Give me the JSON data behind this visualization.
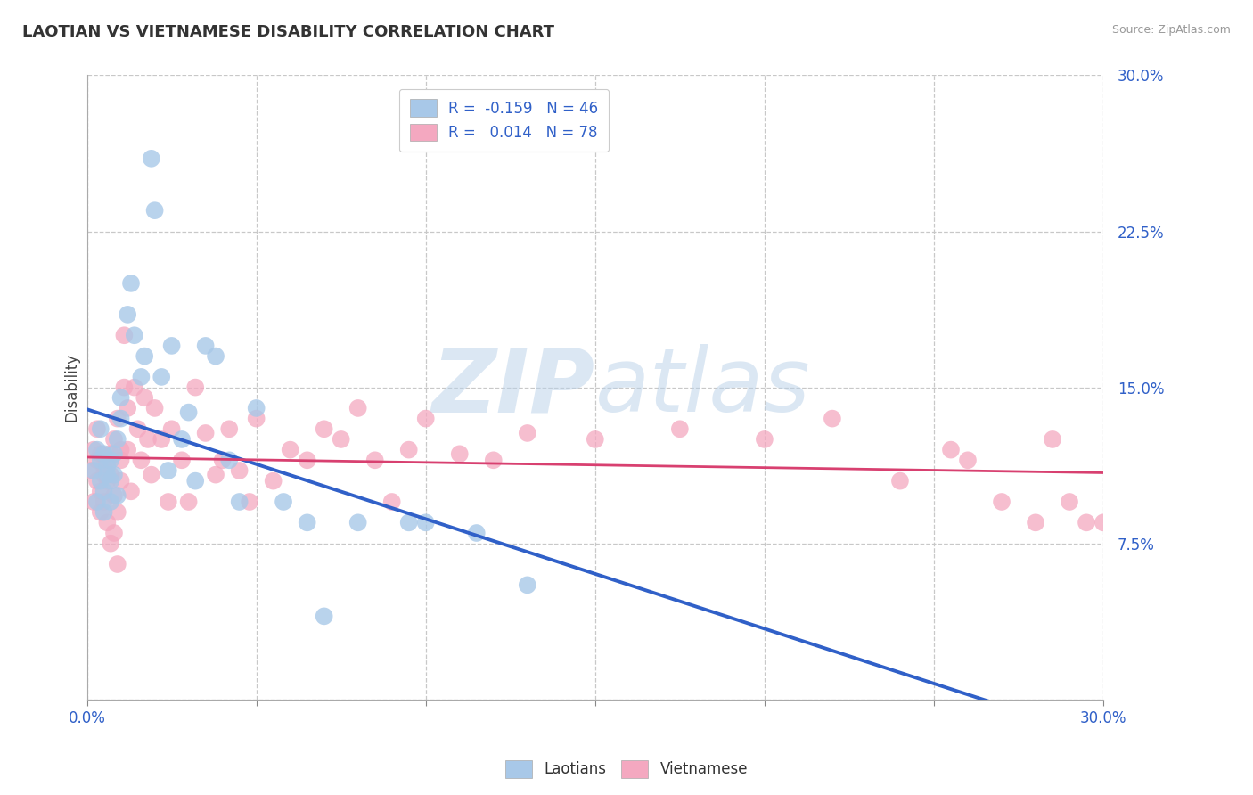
{
  "title": "LAOTIAN VS VIETNAMESE DISABILITY CORRELATION CHART",
  "source": "Source: ZipAtlas.com",
  "ylabel": "Disability",
  "xlim": [
    0.0,
    0.3
  ],
  "ylim": [
    0.0,
    0.3
  ],
  "xticks": [
    0.0,
    0.05,
    0.1,
    0.15,
    0.2,
    0.25,
    0.3
  ],
  "yticks": [
    0.0,
    0.075,
    0.15,
    0.225,
    0.3
  ],
  "laotian_color": "#a8c8e8",
  "vietnamese_color": "#f4a8c0",
  "laotian_R": -0.159,
  "laotian_N": 46,
  "vietnamese_R": 0.014,
  "vietnamese_N": 78,
  "laotian_line_color": "#3060c8",
  "vietnamese_line_color": "#d84070",
  "background_color": "#ffffff",
  "grid_color": "#c8c8c8",
  "watermark_color": "#d0e4f4",
  "laotian_x": [
    0.002,
    0.003,
    0.003,
    0.004,
    0.004,
    0.004,
    0.005,
    0.005,
    0.005,
    0.006,
    0.006,
    0.007,
    0.007,
    0.007,
    0.008,
    0.008,
    0.009,
    0.009,
    0.01,
    0.01,
    0.012,
    0.013,
    0.014,
    0.016,
    0.017,
    0.019,
    0.02,
    0.022,
    0.024,
    0.025,
    0.028,
    0.03,
    0.032,
    0.035,
    0.038,
    0.042,
    0.045,
    0.05,
    0.058,
    0.065,
    0.07,
    0.08,
    0.095,
    0.1,
    0.115,
    0.13
  ],
  "laotian_y": [
    0.11,
    0.12,
    0.095,
    0.105,
    0.115,
    0.13,
    0.09,
    0.1,
    0.118,
    0.112,
    0.108,
    0.095,
    0.105,
    0.115,
    0.108,
    0.118,
    0.125,
    0.098,
    0.135,
    0.145,
    0.185,
    0.2,
    0.175,
    0.155,
    0.165,
    0.26,
    0.235,
    0.155,
    0.11,
    0.17,
    0.125,
    0.138,
    0.105,
    0.17,
    0.165,
    0.115,
    0.095,
    0.14,
    0.095,
    0.085,
    0.04,
    0.085,
    0.085,
    0.085,
    0.08,
    0.055
  ],
  "vietnamese_x": [
    0.001,
    0.002,
    0.002,
    0.003,
    0.003,
    0.003,
    0.004,
    0.004,
    0.004,
    0.005,
    0.005,
    0.005,
    0.006,
    0.006,
    0.006,
    0.007,
    0.007,
    0.007,
    0.008,
    0.008,
    0.008,
    0.009,
    0.009,
    0.009,
    0.01,
    0.01,
    0.01,
    0.011,
    0.011,
    0.012,
    0.012,
    0.013,
    0.014,
    0.015,
    0.016,
    0.017,
    0.018,
    0.019,
    0.02,
    0.022,
    0.024,
    0.025,
    0.028,
    0.03,
    0.032,
    0.035,
    0.038,
    0.04,
    0.042,
    0.045,
    0.048,
    0.05,
    0.055,
    0.06,
    0.065,
    0.07,
    0.075,
    0.08,
    0.085,
    0.09,
    0.095,
    0.1,
    0.11,
    0.12,
    0.13,
    0.15,
    0.175,
    0.2,
    0.22,
    0.24,
    0.255,
    0.26,
    0.27,
    0.28,
    0.285,
    0.29,
    0.295,
    0.3
  ],
  "vietnamese_y": [
    0.11,
    0.12,
    0.095,
    0.105,
    0.115,
    0.13,
    0.09,
    0.1,
    0.118,
    0.112,
    0.108,
    0.095,
    0.105,
    0.115,
    0.085,
    0.108,
    0.118,
    0.075,
    0.125,
    0.098,
    0.08,
    0.135,
    0.09,
    0.065,
    0.12,
    0.105,
    0.115,
    0.175,
    0.15,
    0.14,
    0.12,
    0.1,
    0.15,
    0.13,
    0.115,
    0.145,
    0.125,
    0.108,
    0.14,
    0.125,
    0.095,
    0.13,
    0.115,
    0.095,
    0.15,
    0.128,
    0.108,
    0.115,
    0.13,
    0.11,
    0.095,
    0.135,
    0.105,
    0.12,
    0.115,
    0.13,
    0.125,
    0.14,
    0.115,
    0.095,
    0.12,
    0.135,
    0.118,
    0.115,
    0.128,
    0.125,
    0.13,
    0.125,
    0.135,
    0.105,
    0.12,
    0.115,
    0.095,
    0.085,
    0.125,
    0.095,
    0.085,
    0.085
  ]
}
